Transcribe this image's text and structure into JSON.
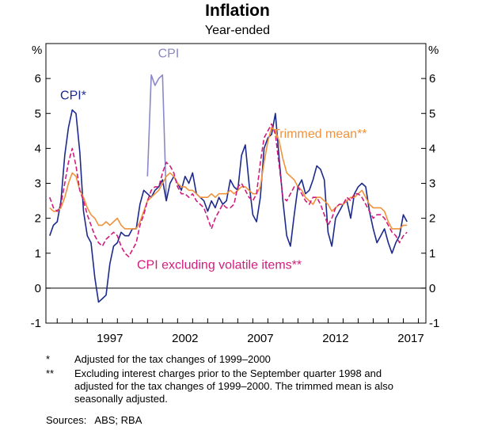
{
  "chart_data": {
    "type": "line",
    "title": "Inflation",
    "subtitle": "Year-ended",
    "ylabel_left": "%",
    "ylabel_right": "%",
    "ylim": [
      -1,
      7
    ],
    "yticks": [
      -1,
      0,
      1,
      2,
      3,
      4,
      5,
      6
    ],
    "xlim": [
      1993.25,
      2018.5
    ],
    "xticks": [
      1997,
      2002,
      2007,
      2012,
      2017
    ],
    "grid": false,
    "series": [
      {
        "name": "CPI",
        "color": "#8a88c8",
        "label_pos": [
          2000.7,
          6.6
        ],
        "x": [
          2000.0,
          2000.25,
          2000.5,
          2000.75,
          2001.0,
          2001.25
        ],
        "values": [
          3.2,
          6.1,
          5.8,
          6.0,
          6.1,
          2.5
        ]
      },
      {
        "name": "CPI*",
        "color": "#1c2a8c",
        "label_pos": [
          1994.2,
          5.4
        ],
        "x": [
          1993.5,
          1993.75,
          1994.0,
          1994.25,
          1994.5,
          1994.75,
          1995.0,
          1995.25,
          1995.5,
          1995.75,
          1996.0,
          1996.25,
          1996.5,
          1996.75,
          1997.0,
          1997.25,
          1997.5,
          1997.75,
          1998.0,
          1998.25,
          1998.5,
          1998.75,
          1999.0,
          1999.25,
          1999.5,
          1999.75,
          2000.0,
          2000.25,
          2000.5,
          2000.75,
          2001.0,
          2001.25,
          2001.5,
          2001.75,
          2002.0,
          2002.25,
          2002.5,
          2002.75,
          2003.0,
          2003.25,
          2003.5,
          2003.75,
          2004.0,
          2004.25,
          2004.5,
          2004.75,
          2005.0,
          2005.25,
          2005.5,
          2005.75,
          2006.0,
          2006.25,
          2006.5,
          2006.75,
          2007.0,
          2007.25,
          2007.5,
          2007.75,
          2008.0,
          2008.25,
          2008.5,
          2008.75,
          2009.0,
          2009.25,
          2009.5,
          2009.75,
          2010.0,
          2010.25,
          2010.5,
          2010.75,
          2011.0,
          2011.25,
          2011.5,
          2011.75,
          2012.0,
          2012.25,
          2012.5,
          2012.75,
          2013.0,
          2013.25,
          2013.5,
          2013.75,
          2014.0,
          2014.25,
          2014.5,
          2014.75,
          2015.0,
          2015.25,
          2015.5,
          2015.75,
          2016.0,
          2016.25,
          2016.5,
          2016.75,
          2017.0,
          2017.25
        ],
        "values": [
          1.5,
          1.8,
          1.9,
          2.5,
          3.8,
          4.6,
          5.1,
          5.0,
          3.9,
          2.2,
          1.5,
          1.3,
          0.3,
          -0.4,
          -0.3,
          -0.2,
          0.7,
          1.2,
          1.3,
          1.6,
          1.5,
          1.5,
          1.7,
          1.7,
          2.4,
          2.8,
          2.7,
          2.6,
          2.8,
          2.9,
          3.1,
          2.5,
          3.0,
          3.2,
          3.0,
          2.8,
          3.2,
          3.0,
          3.3,
          2.7,
          2.6,
          2.5,
          2.2,
          2.5,
          2.3,
          2.6,
          2.4,
          2.5,
          3.1,
          2.9,
          2.8,
          3.8,
          4.1,
          3.0,
          2.1,
          1.9,
          2.6,
          4.0,
          4.3,
          4.4,
          5.0,
          3.7,
          2.5,
          1.5,
          1.2,
          2.1,
          2.9,
          3.1,
          2.7,
          2.8,
          3.1,
          3.5,
          3.4,
          3.1,
          1.6,
          1.2,
          2.0,
          2.2,
          2.4,
          2.5,
          2.0,
          2.7,
          2.9,
          3.0,
          2.9,
          2.2,
          1.7,
          1.3,
          1.5,
          1.7,
          1.3,
          1.0,
          1.3,
          1.5,
          2.1,
          1.9
        ]
      },
      {
        "name": "Trimmed mean**",
        "color": "#f0923c",
        "label_pos": [
          2008.3,
          4.3
        ],
        "x": [
          1993.5,
          1993.75,
          1994.0,
          1994.25,
          1994.5,
          1994.75,
          1995.0,
          1995.25,
          1995.5,
          1995.75,
          1996.0,
          1996.25,
          1996.5,
          1996.75,
          1997.0,
          1997.25,
          1997.5,
          1997.75,
          1998.0,
          1998.25,
          1998.5,
          1998.75,
          1999.0,
          1999.25,
          1999.5,
          1999.75,
          2000.0,
          2000.25,
          2000.5,
          2000.75,
          2001.0,
          2001.25,
          2001.5,
          2001.75,
          2002.0,
          2002.25,
          2002.5,
          2002.75,
          2003.0,
          2003.25,
          2003.5,
          2003.75,
          2004.0,
          2004.25,
          2004.5,
          2004.75,
          2005.0,
          2005.25,
          2005.5,
          2005.75,
          2006.0,
          2006.25,
          2006.5,
          2006.75,
          2007.0,
          2007.25,
          2007.5,
          2007.75,
          2008.0,
          2008.25,
          2008.5,
          2008.75,
          2009.0,
          2009.25,
          2009.5,
          2009.75,
          2010.0,
          2010.25,
          2010.5,
          2010.75,
          2011.0,
          2011.25,
          2011.5,
          2011.75,
          2012.0,
          2012.25,
          2012.5,
          2012.75,
          2013.0,
          2013.25,
          2013.5,
          2013.75,
          2014.0,
          2014.25,
          2014.5,
          2014.75,
          2015.0,
          2015.25,
          2015.5,
          2015.75,
          2016.0,
          2016.25,
          2016.5,
          2016.75,
          2017.0,
          2017.25
        ],
        "values": [
          2.3,
          2.2,
          2.2,
          2.3,
          2.6,
          3.0,
          3.3,
          3.2,
          2.8,
          2.6,
          2.3,
          2.1,
          2.0,
          1.8,
          1.8,
          1.9,
          1.8,
          1.9,
          2.0,
          1.8,
          1.7,
          1.7,
          1.7,
          1.7,
          1.9,
          2.2,
          2.5,
          2.6,
          2.7,
          2.8,
          3.0,
          3.2,
          3.3,
          3.2,
          3.0,
          2.9,
          2.9,
          2.8,
          2.8,
          2.7,
          2.6,
          2.6,
          2.6,
          2.7,
          2.6,
          2.7,
          2.7,
          2.7,
          2.8,
          2.7,
          2.8,
          2.9,
          2.9,
          2.8,
          2.7,
          2.7,
          2.9,
          3.6,
          4.2,
          4.6,
          4.5,
          4.2,
          3.7,
          3.3,
          3.2,
          3.1,
          2.9,
          2.8,
          2.6,
          2.5,
          2.4,
          2.6,
          2.6,
          2.5,
          2.4,
          2.2,
          2.3,
          2.4,
          2.4,
          2.5,
          2.6,
          2.6,
          2.7,
          2.8,
          2.6,
          2.4,
          2.3,
          2.3,
          2.3,
          2.2,
          1.9,
          1.7,
          1.7,
          1.7,
          1.8,
          1.8
        ]
      },
      {
        "name": "CPI excluding volatile items**",
        "color": "#d01c7c",
        "label_pos": [
          1999.3,
          0.55
        ],
        "x": [
          1993.5,
          1993.75,
          1994.0,
          1994.25,
          1994.5,
          1994.75,
          1995.0,
          1995.25,
          1995.5,
          1995.75,
          1996.0,
          1996.25,
          1996.5,
          1996.75,
          1997.0,
          1997.25,
          1997.5,
          1997.75,
          1998.0,
          1998.25,
          1998.5,
          1998.75,
          1999.0,
          1999.25,
          1999.5,
          1999.75,
          2000.0,
          2000.25,
          2000.5,
          2000.75,
          2001.0,
          2001.25,
          2001.5,
          2001.75,
          2002.0,
          2002.25,
          2002.5,
          2002.75,
          2003.0,
          2003.25,
          2003.5,
          2003.75,
          2004.0,
          2004.25,
          2004.5,
          2004.75,
          2005.0,
          2005.25,
          2005.5,
          2005.75,
          2006.0,
          2006.25,
          2006.5,
          2006.75,
          2007.0,
          2007.25,
          2007.5,
          2007.75,
          2008.0,
          2008.25,
          2008.5,
          2008.75,
          2009.0,
          2009.25,
          2009.5,
          2009.75,
          2010.0,
          2010.25,
          2010.5,
          2010.75,
          2011.0,
          2011.25,
          2011.5,
          2011.75,
          2012.0,
          2012.25,
          2012.5,
          2012.75,
          2013.0,
          2013.25,
          2013.5,
          2013.75,
          2014.0,
          2014.25,
          2014.5,
          2014.75,
          2015.0,
          2015.25,
          2015.5,
          2015.75,
          2016.0,
          2016.25,
          2016.5,
          2016.75,
          2017.0,
          2017.25
        ],
        "values": [
          2.6,
          2.3,
          2.2,
          2.4,
          3.0,
          3.6,
          4.0,
          3.5,
          2.8,
          2.5,
          2.1,
          1.8,
          1.5,
          1.3,
          1.2,
          1.4,
          1.5,
          1.6,
          1.5,
          1.2,
          1.0,
          0.9,
          1.1,
          1.3,
          1.8,
          2.1,
          2.5,
          2.8,
          2.9,
          2.9,
          3.3,
          3.6,
          3.5,
          3.3,
          2.9,
          2.7,
          2.7,
          2.6,
          2.7,
          2.5,
          2.4,
          2.3,
          2.0,
          1.7,
          2.0,
          2.2,
          2.4,
          2.3,
          2.3,
          2.4,
          2.9,
          3.0,
          2.8,
          2.6,
          2.5,
          2.7,
          3.6,
          4.3,
          4.5,
          4.7,
          4.4,
          3.5,
          2.6,
          2.5,
          2.7,
          2.9,
          2.9,
          2.7,
          2.5,
          2.4,
          2.6,
          2.6,
          2.4,
          2.1,
          1.8,
          2.0,
          2.3,
          2.4,
          2.4,
          2.6,
          2.5,
          2.7,
          2.7,
          2.6,
          2.4,
          2.2,
          2.0,
          2.1,
          2.1,
          2.0,
          1.8,
          1.6,
          1.5,
          1.3,
          1.5,
          1.6
        ]
      }
    ]
  },
  "notes": [
    {
      "mark": "*",
      "text": "Adjusted for the tax changes of 1999–2000"
    },
    {
      "mark": "**",
      "text": "Excluding interest charges prior to the September quarter 1998 and adjusted for the tax changes of 1999–2000. The trimmed mean is also seasonally adjusted."
    }
  ],
  "sources": "Sources:   ABS; RBA"
}
